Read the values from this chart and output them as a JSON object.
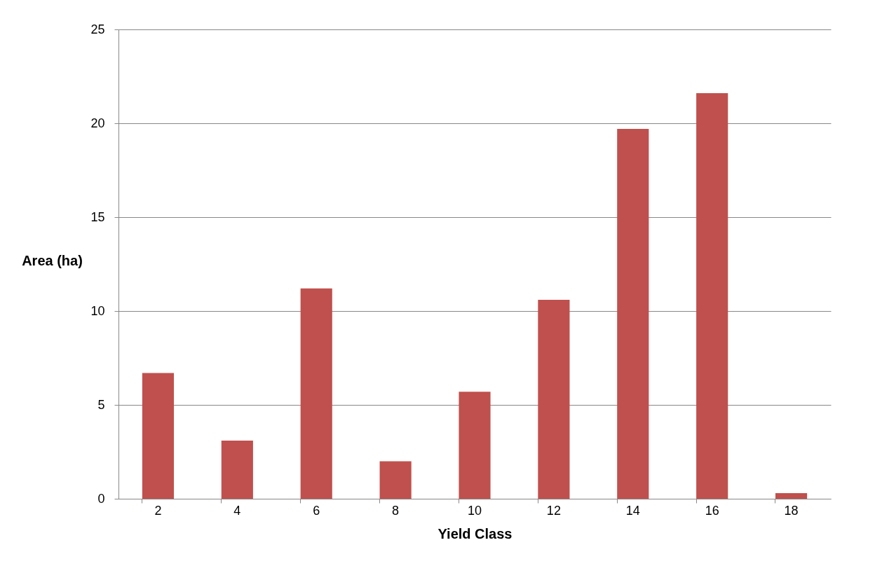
{
  "chart_data": {
    "type": "bar",
    "xlabel": "Yield Class",
    "ylabel": "Area (ha)",
    "categories": [
      "2",
      "4",
      "6",
      "8",
      "10",
      "12",
      "14",
      "16",
      "18"
    ],
    "series": [
      {
        "color": "#c0504d",
        "values": [
          6.7,
          3.1,
          11.2,
          2.0,
          5.7,
          10.6,
          19.7,
          21.6,
          0.3
        ]
      }
    ],
    "ylim": [
      0,
      25
    ],
    "yticks": [
      0,
      5,
      10,
      15,
      20,
      25
    ],
    "grid": "y",
    "legend": false
  }
}
